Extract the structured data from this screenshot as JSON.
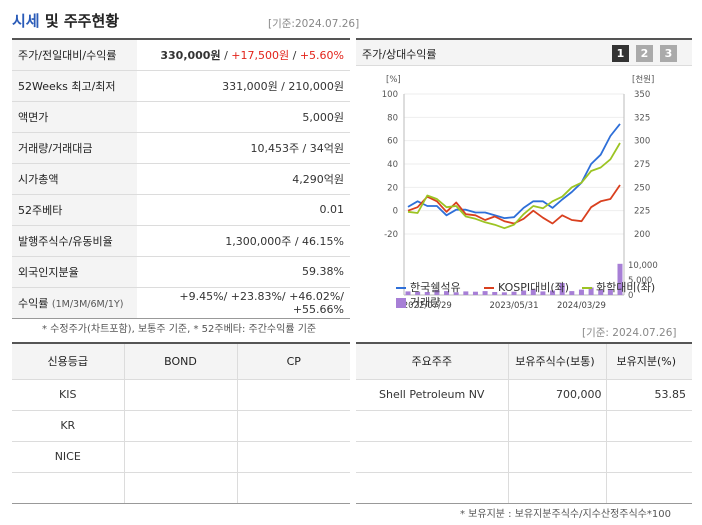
{
  "header": {
    "title_blue": "시세",
    "title_rest": " 및 주주현황",
    "date": "[기준:2024.07.26]"
  },
  "summary": [
    {
      "label": "주가/전일대비/수익률",
      "price": "330,000원",
      "sep1": " / ",
      "change": "+17,500원",
      "sep2": " / ",
      "rate": "+5.60%"
    },
    {
      "label": "52Weeks 최고/최저",
      "value": "331,000원 / 210,000원"
    },
    {
      "label": "액면가",
      "value": "5,000원"
    },
    {
      "label": "거래량/거래대금",
      "value": "10,453주 / 34억원"
    },
    {
      "label": "시가총액",
      "value": "4,290억원"
    },
    {
      "label": "52주베타",
      "value": "0.01"
    },
    {
      "label": "발행주식수/유동비율",
      "value": "1,300,000주 / 46.15%"
    },
    {
      "label": "외국인지분율",
      "value": "59.38%"
    },
    {
      "label": "수익률",
      "label_sub": "(1M/3M/6M/1Y)",
      "value": "+9.45%/ +23.83%/ +46.02%/ +55.66%"
    }
  ],
  "summary_note": "* 수정주가(차트포함), 보통주 기준, * 52주베타: 주간수익률 기준",
  "chart": {
    "label": "주가/상대수익률",
    "pages": [
      "1",
      "2",
      "3"
    ],
    "left_unit": "[%]",
    "right_unit": "[천원]",
    "colors": {
      "stock": "#2e6fd8",
      "kospi": "#d9401f",
      "sector": "#9cc423",
      "volume": "#a77fd6"
    },
    "legend": {
      "stock": "한국쉘석유",
      "kospi": "KOSPI대비(좌)",
      "sector": "화학대비(좌)",
      "volume": "거래량"
    }
  },
  "chart_data": {
    "type": "line",
    "x_ticks": [
      "2022/07/29",
      "2023/05/31",
      "2024/03/29"
    ],
    "left_axis": {
      "ticks": [
        "100",
        "80",
        "60",
        "40",
        "20",
        "0",
        "-20"
      ],
      "ylim": [
        -20,
        100
      ]
    },
    "right_axis": {
      "ticks": [
        "350",
        "325",
        "300",
        "275",
        "250",
        "225",
        "200"
      ],
      "ylim": [
        200,
        350
      ]
    },
    "volume_axis": {
      "ticks": [
        "10,000",
        "5,000",
        "0"
      ],
      "ylim": [
        0,
        10000
      ]
    },
    "series": [
      {
        "name": "한국쉘석유",
        "axis": "right",
        "values": [
          229,
          235,
          230,
          230,
          220,
          226,
          226,
          223,
          223,
          220,
          217,
          218,
          228,
          235,
          235,
          228,
          237,
          245,
          255,
          275,
          285,
          305,
          318
        ]
      },
      {
        "name": "KOSPI대비(좌)",
        "axis": "left",
        "values": [
          0,
          3,
          12,
          8,
          -1,
          7,
          -3,
          -4,
          -8,
          -5,
          -9,
          -11,
          -7,
          0,
          -6,
          -11,
          -4,
          -8,
          -9,
          3,
          8,
          10,
          22
        ]
      },
      {
        "name": "화학대비(좌)",
        "axis": "left",
        "values": [
          -1,
          -2,
          13,
          10,
          3,
          4,
          -5,
          -7,
          -10,
          -12,
          -15,
          -12,
          -3,
          4,
          2,
          8,
          12,
          20,
          24,
          34,
          37,
          44,
          58
        ]
      }
    ],
    "volume": [
      1200,
      1100,
      1000,
      1600,
      1300,
      900,
      1200,
      1100,
      1300,
      1000,
      900,
      1100,
      1500,
      1800,
      1200,
      1500,
      4000,
      1300,
      1800,
      2500,
      1800,
      2000,
      10400
    ]
  },
  "credit": {
    "headers": [
      "신용등급",
      "BOND",
      "CP"
    ],
    "rows": [
      [
        "KIS",
        "",
        ""
      ],
      [
        "KR",
        "",
        ""
      ],
      [
        "NICE",
        "",
        ""
      ],
      [
        "",
        "",
        ""
      ]
    ]
  },
  "holders": {
    "date": "[기준: 2024.07.26]",
    "headers": [
      "주요주주",
      "보유주식수(보통)",
      "보유지분(%)"
    ],
    "rows": [
      [
        "Shell Petroleum NV",
        "700,000",
        "53.85"
      ],
      [
        "",
        "",
        ""
      ],
      [
        "",
        "",
        ""
      ],
      [
        "",
        "",
        ""
      ]
    ],
    "note": "* 보유지분 : 보유지분주식수/지수산정주식수*100"
  }
}
